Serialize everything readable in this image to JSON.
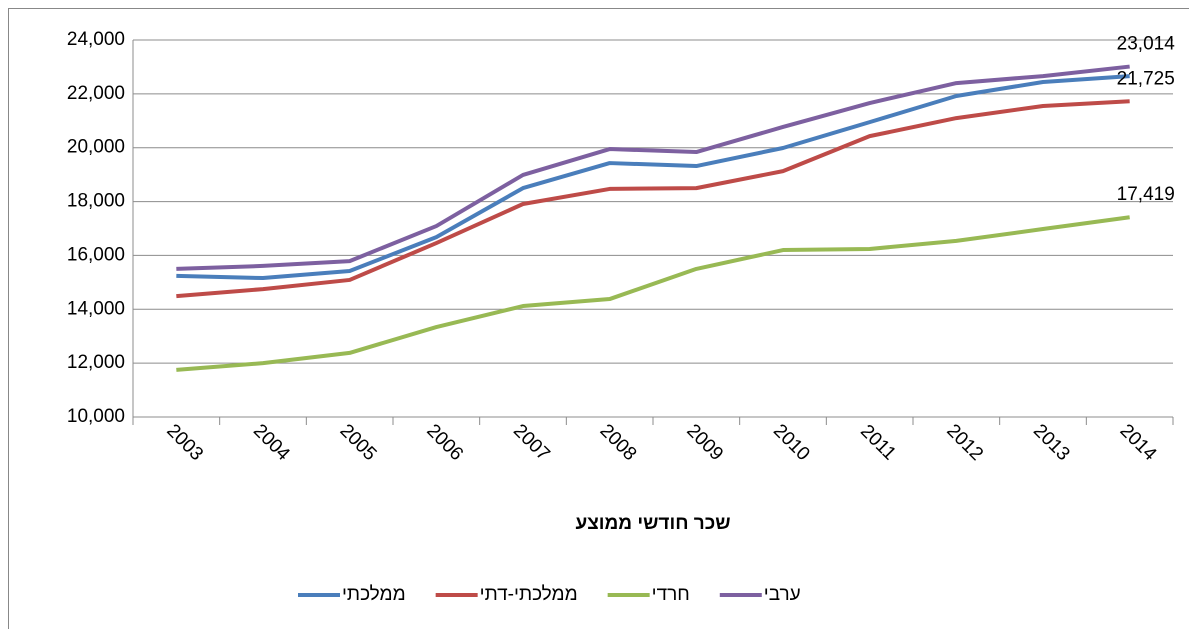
{
  "chart_data": {
    "type": "line",
    "x_label": "שכר חודשי ממוצע",
    "categories": [
      "2003",
      "2004",
      "2005",
      "2006",
      "2007",
      "2008",
      "2009",
      "2010",
      "2011",
      "2012",
      "2013",
      "2014"
    ],
    "series": [
      {
        "name": "ממלכתי",
        "color": "#4a7ebb",
        "values": [
          15240,
          15160,
          15420,
          16680,
          18500,
          19430,
          19320,
          19990,
          20950,
          21920,
          22440,
          22660
        ]
      },
      {
        "name": "ממלכתי-דתי",
        "color": "#be4b48",
        "values": [
          14490,
          14750,
          15090,
          16460,
          17910,
          18470,
          18500,
          19130,
          20430,
          21100,
          21550,
          21725
        ],
        "value_labels": [
          null,
          null,
          null,
          null,
          null,
          null,
          null,
          null,
          null,
          null,
          null,
          "21,725"
        ]
      },
      {
        "name": "חרדי",
        "color": "#98b954",
        "values": [
          11750,
          12000,
          12380,
          13340,
          14120,
          14380,
          15500,
          16200,
          16240,
          16540,
          16980,
          17419
        ],
        "value_labels": [
          null,
          null,
          null,
          null,
          null,
          null,
          null,
          null,
          null,
          null,
          null,
          "17,419"
        ]
      },
      {
        "name": "ערבי",
        "color": "#7d60a0",
        "values": [
          15500,
          15610,
          15790,
          17090,
          18990,
          19950,
          19840,
          20770,
          21660,
          22400,
          22660,
          23014
        ],
        "value_labels": [
          null,
          null,
          null,
          null,
          null,
          null,
          null,
          null,
          null,
          null,
          null,
          "23,014"
        ]
      }
    ],
    "ylim": [
      10000,
      24000
    ],
    "yticks": [
      {
        "value": 10000,
        "label": "10,000"
      },
      {
        "value": 12000,
        "label": "12,000"
      },
      {
        "value": 14000,
        "label": "14,000"
      },
      {
        "value": 16000,
        "label": "16,000"
      },
      {
        "value": 18000,
        "label": "18,000"
      },
      {
        "value": 20000,
        "label": "20,000"
      },
      {
        "value": 22000,
        "label": "22,000"
      },
      {
        "value": 24000,
        "label": "24,000"
      }
    ],
    "grid": true,
    "legend": "bottom"
  }
}
